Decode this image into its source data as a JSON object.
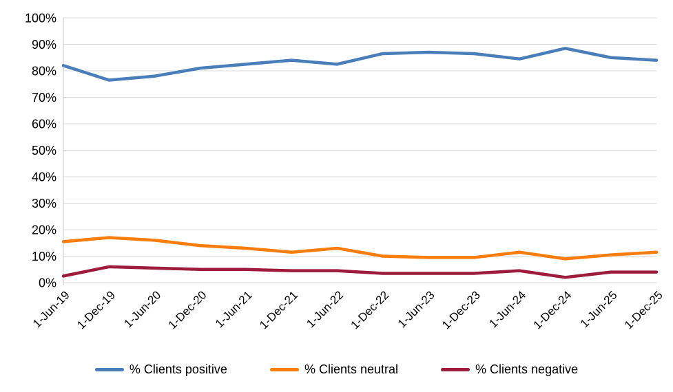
{
  "chart_data": {
    "type": "line",
    "title": "",
    "xlabel": "",
    "ylabel": "",
    "categories": [
      "1-Jun-19",
      "1-Dec-19",
      "1-Jun-20",
      "1-Dec-20",
      "1-Jun-21",
      "1-Dec-21",
      "1-Jun-22",
      "1-Dec-22",
      "1-Jun-23",
      "1-Dec-23",
      "1-Jun-24",
      "1-Dec-24",
      "1-Jun-25",
      "1-Dec-25"
    ],
    "series": [
      {
        "name": "% Clients positive",
        "color": "#4A7EBB",
        "values": [
          82,
          76.5,
          78,
          81,
          82.5,
          84,
          82.5,
          86.5,
          87,
          86.5,
          84.5,
          88.5,
          85,
          84
        ]
      },
      {
        "name": "% Clients neutral",
        "color": "#F87D0C",
        "values": [
          15.5,
          17,
          16,
          14,
          13,
          11.5,
          13,
          10,
          9.5,
          9.5,
          11.5,
          9,
          10.5,
          11.5
        ]
      },
      {
        "name": "% Clients negative",
        "color": "#9E1B3C",
        "values": [
          2.5,
          6,
          5.5,
          5,
          5,
          4.5,
          4.5,
          3.5,
          3.5,
          3.5,
          4.5,
          2,
          4,
          4
        ]
      }
    ],
    "ylim": [
      0,
      100
    ],
    "y_ticks": [
      "0%",
      "10%",
      "20%",
      "30%",
      "40%",
      "50%",
      "60%",
      "70%",
      "80%",
      "90%",
      "100%"
    ],
    "grid": true,
    "grid_color": "#D9D9D9",
    "axis_color": "#C6C6C6",
    "text_color": "#000000",
    "background": "#FFFFFF",
    "legend_position": "bottom"
  }
}
